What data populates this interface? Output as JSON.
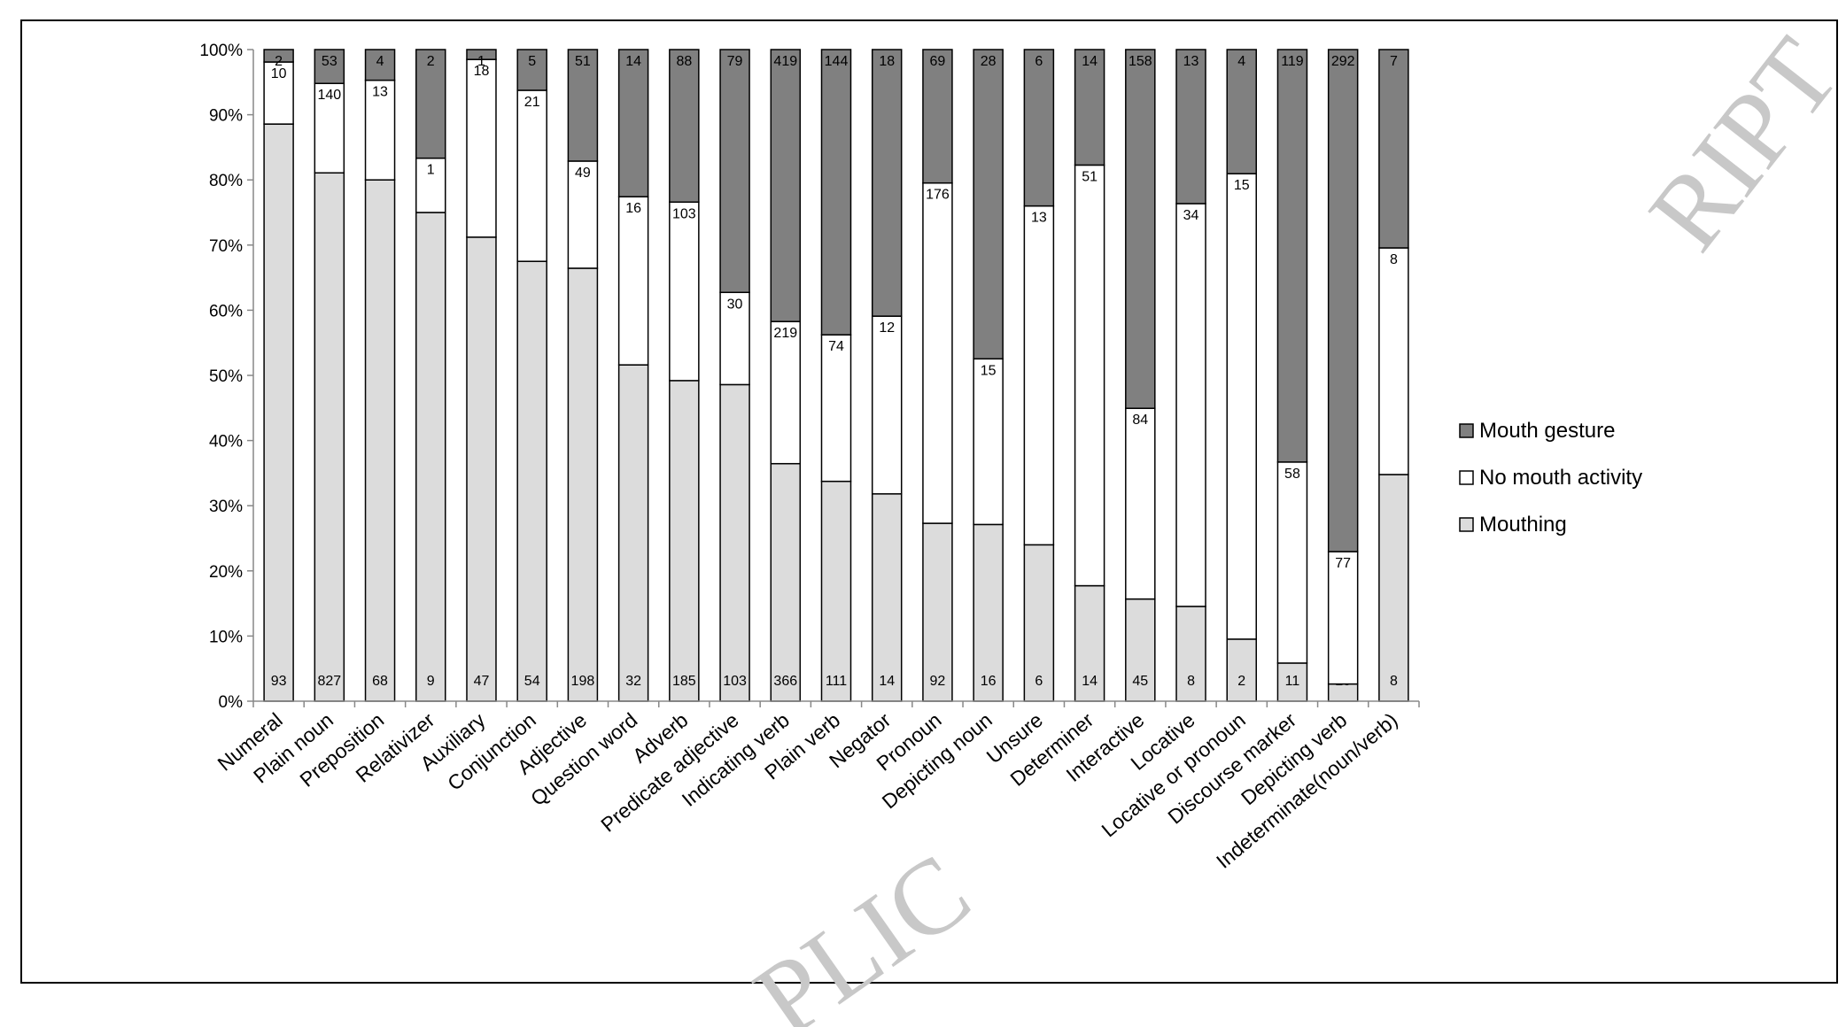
{
  "chart_data": {
    "type": "bar",
    "stacked": "percent",
    "title": "",
    "xlabel": "",
    "ylabel": "",
    "ylim": [
      0,
      100
    ],
    "y_ticks": [
      "0%",
      "10%",
      "20%",
      "30%",
      "40%",
      "50%",
      "60%",
      "70%",
      "80%",
      "90%",
      "100%"
    ],
    "grid": false,
    "legend_position": "right",
    "categories": [
      "Numeral",
      "Plain noun",
      "Preposition",
      "Relativizer",
      "Auxiliary",
      "Conjunction",
      "Adjective",
      "Question word",
      "Adverb",
      "Predicate adjective",
      "Indicating verb",
      "Plain verb",
      "Negator",
      "Pronoun",
      "Depicting noun",
      "Unsure",
      "Determiner",
      "Interactive",
      "Locative",
      "Locative or pronoun",
      "Discourse marker",
      "Depicting verb",
      "Indeterminate(noun/verb)"
    ],
    "series": [
      {
        "name": "Mouthing",
        "color": "#dcdcdc",
        "values": [
          93,
          827,
          68,
          9,
          47,
          54,
          198,
          32,
          185,
          103,
          366,
          111,
          14,
          92,
          16,
          6,
          14,
          45,
          8,
          2,
          11,
          10,
          8
        ]
      },
      {
        "name": "No mouth activity",
        "color": "#ffffff",
        "values": [
          10,
          140,
          13,
          1,
          18,
          21,
          49,
          16,
          103,
          30,
          219,
          74,
          12,
          176,
          15,
          13,
          51,
          84,
          34,
          15,
          58,
          77,
          8
        ]
      },
      {
        "name": "Mouth gesture",
        "color": "#808080",
        "values": [
          2,
          53,
          4,
          2,
          1,
          5,
          51,
          14,
          88,
          79,
          419,
          144,
          18,
          69,
          28,
          6,
          14,
          158,
          13,
          4,
          119,
          292,
          7
        ]
      }
    ],
    "legend_order": [
      "Mouth gesture",
      "No mouth activity",
      "Mouthing"
    ]
  },
  "watermark": {
    "top_right": "RIPT",
    "bottom": "PLIC"
  }
}
